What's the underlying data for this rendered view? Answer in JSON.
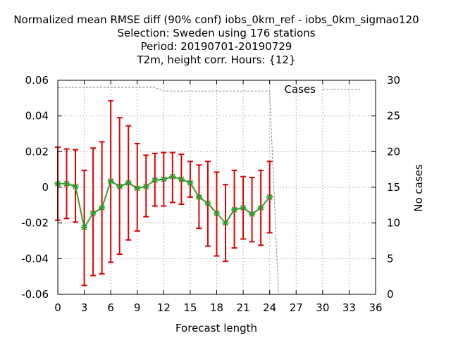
{
  "chart_data": {
    "type": "line",
    "title_lines": [
      "Normalized mean RMSE diff (90% conf) iobs_0km_ref - iobs_0km_sigmao120",
      "Selection: Sweden using   176 stations",
      "Period: 20190701-20190729",
      "T2m, height corr.   Hours: {12}"
    ],
    "xlabel": "Forecast length",
    "ylabel": "",
    "y2label": "No cases",
    "xlim": [
      0,
      36
    ],
    "ylim": [
      -0.06,
      0.06
    ],
    "y2lim": [
      0,
      30
    ],
    "x_ticks": [
      0,
      3,
      6,
      9,
      12,
      15,
      18,
      21,
      24,
      27,
      30,
      33,
      36
    ],
    "x_tick_labels": [
      "0",
      "3",
      "6",
      "9",
      "12",
      "15",
      "18",
      "21",
      "24",
      "27",
      "30",
      "33",
      "36"
    ],
    "y_ticks": [
      -0.06,
      -0.04,
      -0.02,
      0,
      0.02,
      0.04,
      0.06
    ],
    "y_tick_labels": [
      "-0.06",
      "-0.04",
      "-0.02",
      "0",
      "0.02",
      "0.04",
      "0.06"
    ],
    "y2_ticks": [
      0,
      5,
      10,
      15,
      20,
      25,
      30
    ],
    "y2_tick_labels": [
      "0",
      "5",
      "10",
      "15",
      "20",
      "25",
      "30"
    ],
    "grid": true,
    "legend": {
      "placement": "top-right",
      "entries": [
        "Cases"
      ]
    },
    "colors": {
      "series_line": "#2ca02c",
      "series_marker": "#2ca02c",
      "error_bar": "#e00000",
      "cases_line": "#888888",
      "grid": "#a0a0a0",
      "axes": "#000000"
    },
    "series": [
      {
        "x": [
          0,
          1,
          2,
          3,
          4,
          5,
          6,
          7,
          8,
          9,
          10,
          11,
          12,
          13,
          14,
          15,
          16,
          17,
          18,
          19,
          20,
          21,
          22,
          23,
          24
        ],
        "values": [
          0.002,
          0.002,
          0.0005,
          -0.0225,
          -0.0145,
          -0.0115,
          0.0035,
          0.0005,
          0.0025,
          -0.0005,
          0.0005,
          0.004,
          0.0045,
          0.006,
          0.0045,
          0.0025,
          -0.0055,
          -0.009,
          -0.0145,
          -0.02,
          -0.0125,
          -0.0115,
          -0.015,
          -0.0115,
          -0.0055
        ],
        "err_low": [
          -0.0185,
          -0.0175,
          -0.0195,
          -0.055,
          -0.0495,
          -0.0485,
          -0.042,
          -0.0375,
          -0.0295,
          -0.0245,
          -0.0165,
          -0.0105,
          -0.0105,
          -0.0085,
          -0.0095,
          -0.0055,
          -0.023,
          -0.033,
          -0.0385,
          -0.0415,
          -0.034,
          -0.029,
          -0.0305,
          -0.0325,
          -0.0255
        ],
        "err_high": [
          0.0225,
          0.0215,
          0.021,
          0.0095,
          0.022,
          0.0255,
          0.0485,
          0.039,
          0.0345,
          0.0245,
          0.018,
          0.019,
          0.0195,
          0.0195,
          0.0185,
          0.0145,
          0.0125,
          0.0145,
          0.0085,
          0.0015,
          0.0095,
          0.006,
          0.0055,
          0.0095,
          0.0145
        ]
      },
      {
        "name": "Cases",
        "axis": "y2",
        "x": [
          0,
          1,
          2,
          3,
          4,
          5,
          6,
          7,
          8,
          9,
          10,
          11,
          12,
          13,
          14,
          15,
          16,
          17,
          18,
          19,
          20,
          21,
          22,
          23,
          24,
          25,
          26,
          27,
          28,
          29,
          30,
          31,
          32,
          33,
          34,
          35,
          36
        ],
        "values": [
          29,
          29,
          29,
          29,
          29,
          29,
          29,
          29,
          29,
          29,
          29,
          29,
          28.5,
          28.5,
          28.5,
          28.5,
          28.5,
          28.5,
          28.5,
          28.5,
          28.5,
          28.5,
          28.5,
          28.5,
          28.5,
          0,
          0,
          0,
          0,
          0,
          0,
          0,
          0,
          0,
          0,
          0,
          0
        ]
      }
    ]
  }
}
